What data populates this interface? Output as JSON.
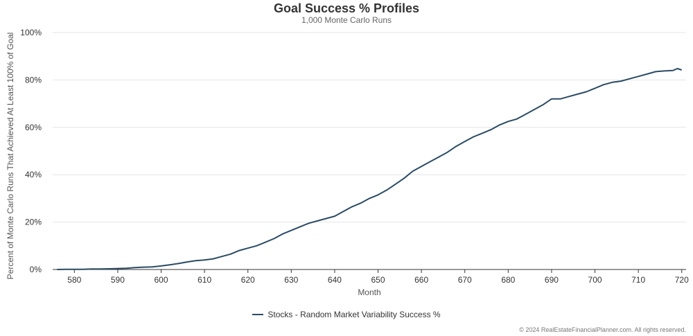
{
  "chart_data": {
    "type": "line",
    "title": "Goal Success % Profiles",
    "subtitle": "1,000 Monte Carlo Runs",
    "xlabel": "Month",
    "ylabel": "Percent of Monte Carlo Runs That Achieved At Least 100% of Goal",
    "xlim": [
      575,
      721
    ],
    "ylim": [
      0,
      100
    ],
    "x_ticks": [
      580,
      590,
      600,
      610,
      620,
      630,
      640,
      650,
      660,
      670,
      680,
      690,
      700,
      710,
      720
    ],
    "y_ticks": [
      0,
      20,
      40,
      60,
      80,
      100
    ],
    "y_tick_labels": [
      "0%",
      "20%",
      "40%",
      "60%",
      "80%",
      "100%"
    ],
    "grid": "horizontal",
    "legend_position": "bottom-center",
    "series": [
      {
        "name": "Stocks - Random Market Variability Success %",
        "color": "#2a4a63",
        "x": [
          576,
          578,
          580,
          582,
          584,
          586,
          588,
          590,
          592,
          594,
          596,
          598,
          600,
          602,
          604,
          606,
          608,
          610,
          612,
          614,
          616,
          618,
          620,
          622,
          624,
          626,
          628,
          630,
          632,
          634,
          636,
          638,
          640,
          642,
          644,
          646,
          648,
          650,
          652,
          654,
          656,
          658,
          660,
          662,
          664,
          666,
          668,
          670,
          672,
          674,
          676,
          678,
          680,
          682,
          684,
          686,
          688,
          690,
          692,
          694,
          696,
          698,
          700,
          702,
          704,
          706,
          708,
          710,
          712,
          714,
          716,
          718,
          719,
          720
        ],
        "values": [
          0,
          0.1,
          0.1,
          0.1,
          0.2,
          0.2,
          0.3,
          0.4,
          0.5,
          0.8,
          1,
          1.1,
          1.5,
          2,
          2.5,
          3.2,
          3.7,
          4,
          4.5,
          5.5,
          6.5,
          8,
          9,
          10,
          11.5,
          13,
          15,
          16.5,
          18,
          19.5,
          20.5,
          21.5,
          22.5,
          24.5,
          26.5,
          28,
          30,
          31.5,
          33.5,
          36,
          38.5,
          41.5,
          43.5,
          45.5,
          47.5,
          49.5,
          52,
          54,
          56,
          57.5,
          59,
          61,
          62.5,
          63.5,
          65.5,
          67.5,
          69.5,
          72,
          72,
          73,
          74,
          75,
          76.5,
          78,
          79,
          79.5,
          80.5,
          81.5,
          82.5,
          83.5,
          83.8,
          84,
          84.8,
          84.2
        ]
      }
    ]
  },
  "footer": {
    "copyright": "© 2024 RealEstateFinancialPlanner.com. All rights reserved."
  }
}
